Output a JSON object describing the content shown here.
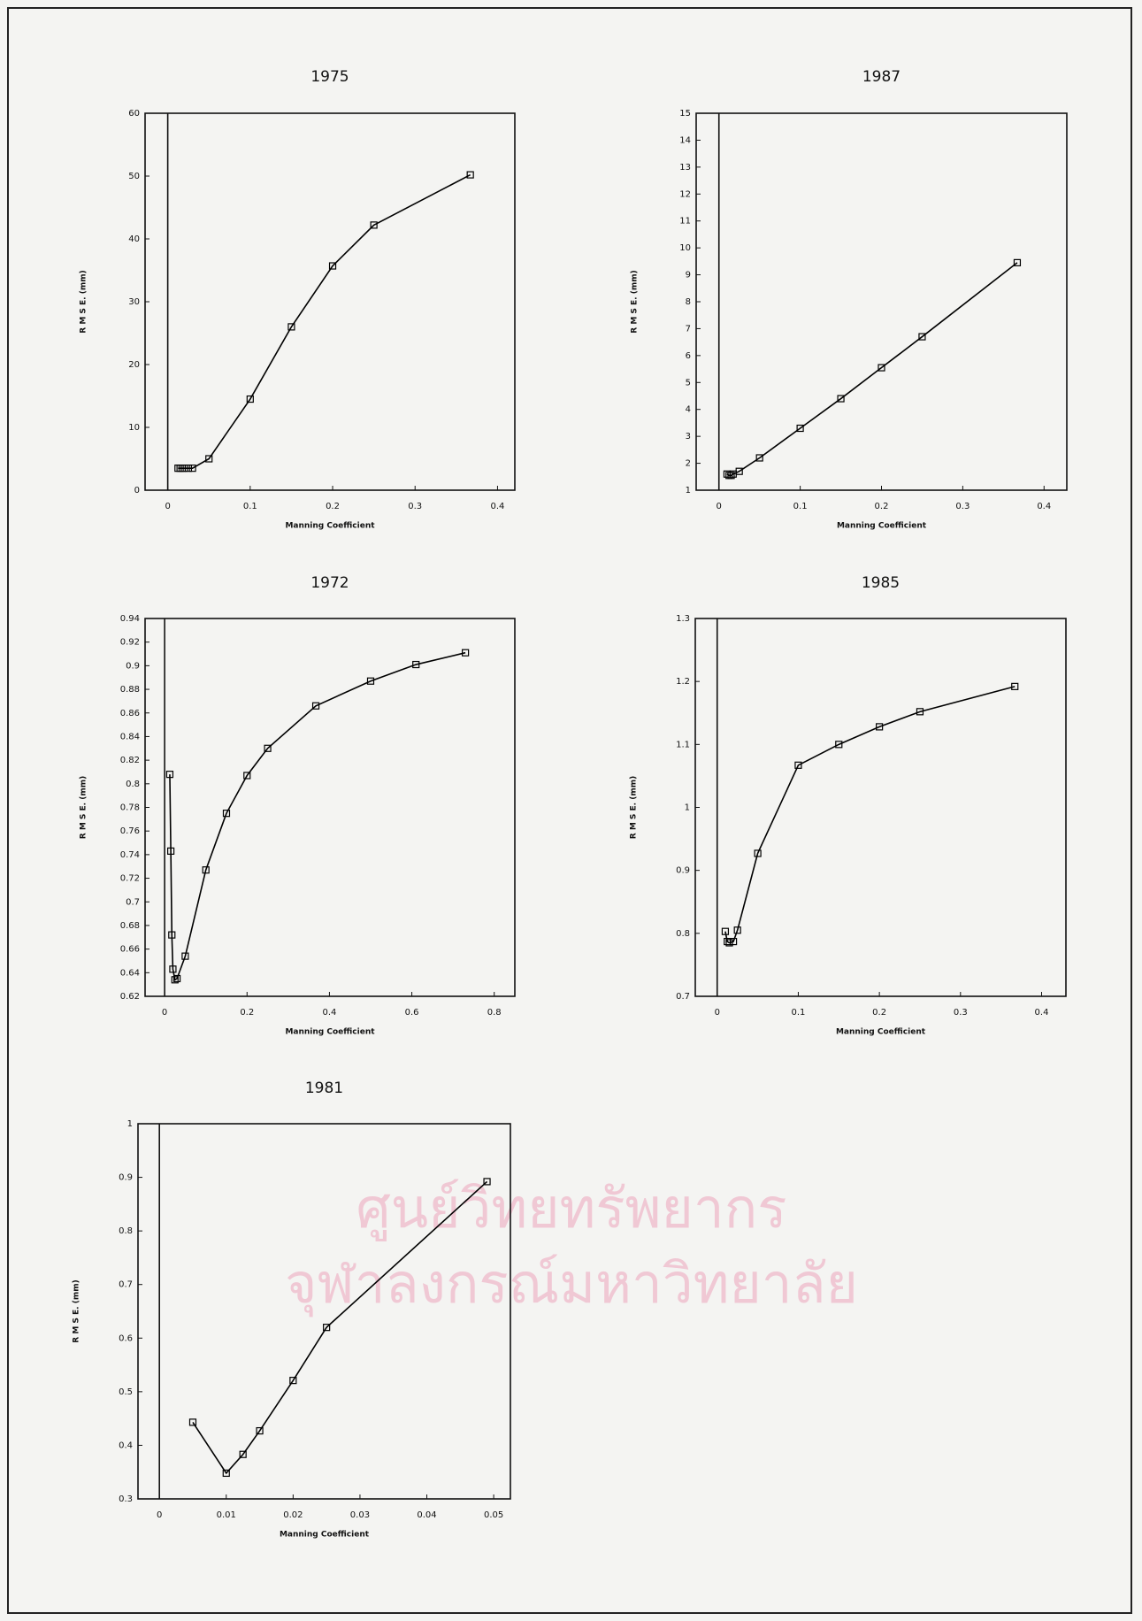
{
  "chart_data": [
    {
      "type": "line",
      "title": "1975",
      "x_label": "Manning Coefficient",
      "y_label": "R M S E. (mm)",
      "color": "#000000",
      "zero_line": true,
      "x": [
        0.0125,
        0.015,
        0.0175,
        0.02,
        0.025,
        0.03,
        0.05,
        0.1,
        0.15,
        0.2,
        0.25,
        0.367
      ],
      "values": [
        3.5,
        3.5,
        3.5,
        3.5,
        3.5,
        3.5,
        5,
        14.5,
        26,
        35.7,
        42.2,
        50.2
      ],
      "xlim": [
        -0.0275,
        0.421
      ],
      "ylim": [
        0,
        60
      ],
      "xticks": [
        0,
        0.1,
        0.2,
        0.3,
        0.4
      ],
      "yticks": [
        0,
        10,
        20,
        30,
        40,
        50,
        60
      ]
    },
    {
      "type": "line",
      "title": "1987",
      "x_label": "Manning Coefficient",
      "y_label": "R M S E. (mm)",
      "color": "#000000",
      "zero_line": true,
      "x": [
        0.01,
        0.0125,
        0.015,
        0.0175,
        0.025,
        0.05,
        0.1,
        0.15,
        0.2,
        0.25,
        0.367
      ],
      "values": [
        1.6,
        1.55,
        1.55,
        1.6,
        1.7,
        2.2,
        3.3,
        4.4,
        5.55,
        6.7,
        9.45
      ],
      "xlim": [
        -0.028,
        0.428
      ],
      "ylim": [
        1,
        15
      ],
      "xticks": [
        0,
        0.1,
        0.2,
        0.3,
        0.4
      ],
      "yticks": [
        1,
        2,
        3,
        4,
        5,
        6,
        7,
        8,
        9,
        10,
        11,
        12,
        13,
        14,
        15
      ]
    },
    {
      "type": "line",
      "title": "1972",
      "x_label": "Manning Coefficient",
      "y_label": "R M S E. (mm)",
      "color": "#000000",
      "zero_line": true,
      "x": [
        0.0125,
        0.015,
        0.0175,
        0.02,
        0.025,
        0.03,
        0.05,
        0.1,
        0.15,
        0.2,
        0.25,
        0.367,
        0.5,
        0.61,
        0.73
      ],
      "values": [
        0.808,
        0.743,
        0.672,
        0.643,
        0.634,
        0.635,
        0.654,
        0.727,
        0.775,
        0.807,
        0.83,
        0.866,
        0.887,
        0.901,
        0.911
      ],
      "xlim": [
        -0.0475,
        0.85
      ],
      "ylim": [
        0.62,
        0.94
      ],
      "xticks": [
        0,
        0.2,
        0.4,
        0.6,
        0.8
      ],
      "yticks": [
        0.62,
        0.64,
        0.66,
        0.68,
        0.7,
        0.72,
        0.74,
        0.76,
        0.78,
        0.8,
        0.82,
        0.84,
        0.86,
        0.88,
        0.9,
        0.92,
        0.94
      ]
    },
    {
      "type": "line",
      "title": "1985",
      "x_label": "Manning Coefficient",
      "y_label": "R M S E. (mm)",
      "color": "#000000",
      "zero_line": true,
      "x": [
        0.01,
        0.0125,
        0.015,
        0.02,
        0.025,
        0.05,
        0.1,
        0.15,
        0.2,
        0.25,
        0.367
      ],
      "values": [
        0.803,
        0.787,
        0.785,
        0.787,
        0.805,
        0.927,
        1.067,
        1.1,
        1.128,
        1.152,
        1.192
      ],
      "xlim": [
        -0.027,
        0.43
      ],
      "ylim": [
        0.7,
        1.3
      ],
      "xticks": [
        0,
        0.1,
        0.2,
        0.3,
        0.4
      ],
      "yticks": [
        0.7,
        0.8,
        0.9,
        1,
        1.1,
        1.2,
        1.3
      ]
    },
    {
      "type": "line",
      "title": "1981",
      "x_label": "Manning Coefficient",
      "y_label": "R M S E. (mm)",
      "color": "#000000",
      "zero_line": true,
      "x": [
        0.005,
        0.01,
        0.0125,
        0.015,
        0.02,
        0.025,
        0.049
      ],
      "values": [
        0.443,
        0.348,
        0.383,
        0.427,
        0.521,
        0.62,
        0.892
      ],
      "xlim": [
        -0.0032,
        0.0525
      ],
      "ylim": [
        0.3,
        1
      ],
      "xticks": [
        0,
        0.01,
        0.02,
        0.03,
        0.04,
        0.05
      ],
      "yticks": [
        0.3,
        0.4,
        0.5,
        0.6,
        0.7,
        0.8,
        0.9,
        1
      ]
    }
  ],
  "watermark": [
    "ศูนย์วิทยทรัพยากร",
    "จุฬาลงกรณ์มหาวิทยาลัย"
  ]
}
